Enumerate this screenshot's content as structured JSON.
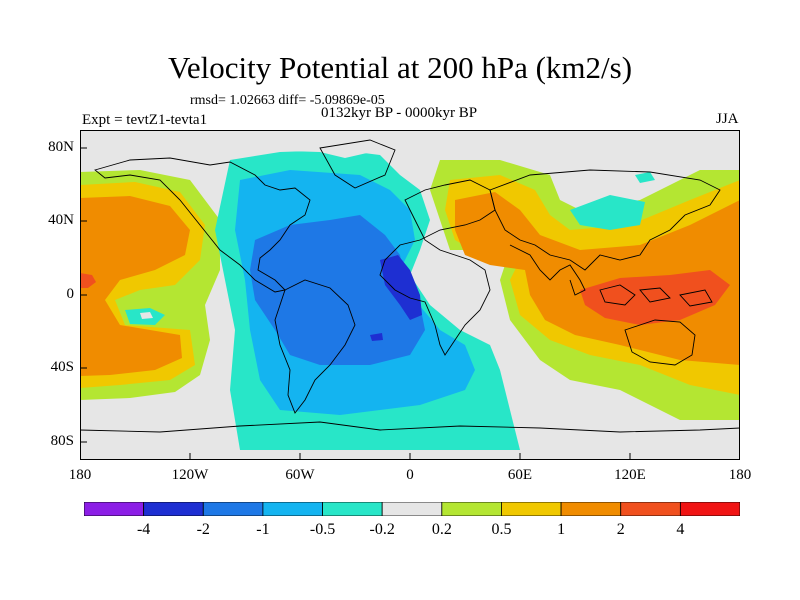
{
  "title": "Velocity Potential at 200 hPa (km2/s)",
  "stats": "rmsd= 1.02663 diff= -5.09869e-05",
  "experiment": "Expt = tevtZ1-tevta1",
  "period": "0132kyr BP - 0000kyr BP",
  "season": "JJA",
  "lat_labels": [
    "80N",
    "40N",
    "0",
    "40S",
    "80S"
  ],
  "lon_labels": [
    "180",
    "120W",
    "60W",
    "0",
    "60E",
    "120E",
    "180"
  ],
  "colorbar": {
    "colors": [
      "#8c1ee6",
      "#1e2fd2",
      "#1e78e6",
      "#14b4f0",
      "#28e6c8",
      "#e6e6e6",
      "#b4e632",
      "#f0c800",
      "#f08c00",
      "#f0501e",
      "#f01414"
    ],
    "labels": [
      "-4",
      "-2",
      "-1",
      "-0.5",
      "-0.2",
      "0.2",
      "0.5",
      "1",
      "2",
      "4"
    ]
  },
  "map": {
    "projection": "cylindrical-equidistant",
    "lon_range": [
      -180,
      180
    ],
    "lat_range": [
      -90,
      90
    ],
    "background_level": "0.2 to -0.2",
    "fields": [
      {
        "name": "atlantic-negative-region",
        "level": "-0.5 to -0.2"
      },
      {
        "name": "americas-negative-region",
        "level": "-1 to -0.5"
      },
      {
        "name": "atlantic-core-region",
        "level": "-2 to -1"
      },
      {
        "name": "africa-minimum",
        "level": "-4 to -2"
      },
      {
        "name": "indo-pacific-positive-region",
        "level": "0.2 to 0.5"
      },
      {
        "name": "maritime-continent-maximum",
        "level": "2 to 4"
      },
      {
        "name": "east-pacific-positive-region",
        "level": "1 to 2"
      }
    ]
  }
}
